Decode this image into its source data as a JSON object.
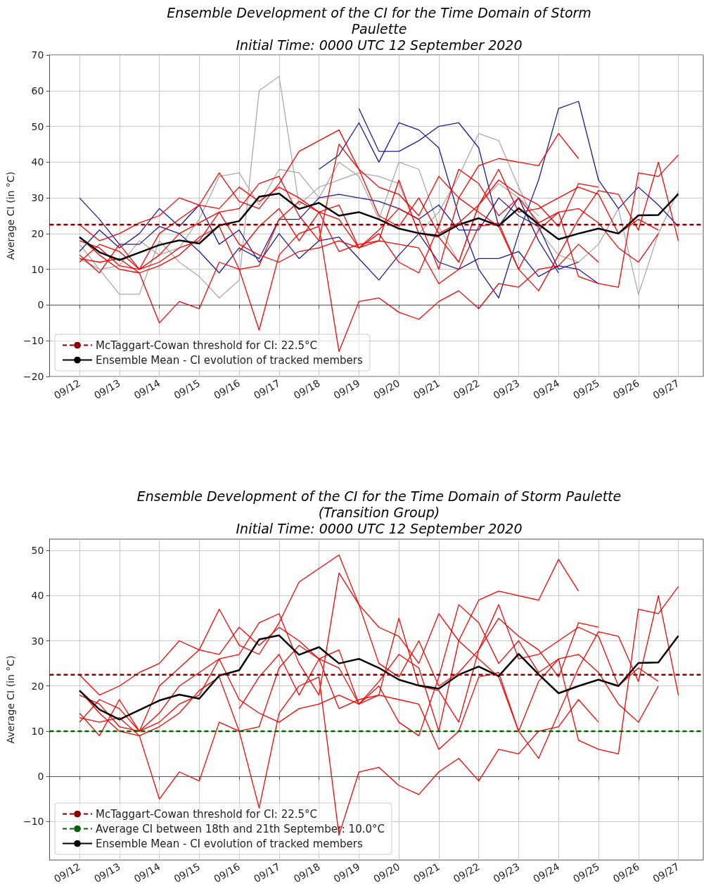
{
  "chart_data": [
    {
      "type": "line",
      "title": "Ensemble Development of the CI for the Time Domain of Storm\nPaulette\nInitial Time: 0000 UTC 12 September 2020",
      "ylabel": "Average CI (in °C)",
      "x": [
        "2020-09-12T00:00",
        "2020-09-12T12:00",
        "2020-09-13T00:00",
        "2020-09-13T12:00",
        "2020-09-14T00:00",
        "2020-09-14T12:00",
        "2020-09-15T00:00",
        "2020-09-15T12:00",
        "2020-09-16T00:00",
        "2020-09-16T12:00",
        "2020-09-17T00:00",
        "2020-09-17T12:00",
        "2020-09-18T00:00",
        "2020-09-18T12:00",
        "2020-09-19T00:00",
        "2020-09-19T12:00",
        "2020-09-20T00:00",
        "2020-09-20T12:00",
        "2020-09-21T00:00",
        "2020-09-21T12:00",
        "2020-09-22T00:00",
        "2020-09-22T12:00",
        "2020-09-23T00:00",
        "2020-09-23T12:00",
        "2020-09-24T00:00",
        "2020-09-24T12:00",
        "2020-09-25T00:00",
        "2020-09-25T12:00",
        "2020-09-26T00:00",
        "2020-09-26T12:00",
        "2020-09-27T00:00"
      ],
      "xlim": [
        "2020-09-11T06:00",
        "2020-09-27T15:00"
      ],
      "xticks": [
        {
          "value": "2020-09-12",
          "label": "09/12"
        },
        {
          "value": "2020-09-13",
          "label": "09/13"
        },
        {
          "value": "2020-09-14",
          "label": "09/14"
        },
        {
          "value": "2020-09-15",
          "label": "09/15"
        },
        {
          "value": "2020-09-16",
          "label": "09/16"
        },
        {
          "value": "2020-09-17",
          "label": "09/17"
        },
        {
          "value": "2020-09-18",
          "label": "09/18"
        },
        {
          "value": "2020-09-19",
          "label": "09/19"
        },
        {
          "value": "2020-09-20",
          "label": "09/20"
        },
        {
          "value": "2020-09-21",
          "label": "09/21"
        },
        {
          "value": "2020-09-22",
          "label": "09/22"
        },
        {
          "value": "2020-09-23",
          "label": "09/23"
        },
        {
          "value": "2020-09-24",
          "label": "09/24"
        },
        {
          "value": "2020-09-25",
          "label": "09/25"
        },
        {
          "value": "2020-09-26",
          "label": "09/26"
        },
        {
          "value": "2020-09-27",
          "label": "09/27"
        }
      ],
      "ylim": [
        -20,
        70
      ],
      "yticks": [
        -20,
        -10,
        0,
        10,
        20,
        30,
        40,
        50,
        60,
        70
      ],
      "grid": true,
      "legend": "bottom left",
      "ref_lines": [
        {
          "axis": "y",
          "value": 22.5,
          "label": "McTaggart-Cowan threshold for CI: 22.5°C",
          "color": "#8b0000",
          "line_style": "dashed"
        }
      ],
      "series": [
        {
          "color": "#aaaaaa",
          "values": [
            17,
            10,
            3,
            3,
            18,
            12,
            8,
            2,
            7,
            60,
            64,
            28,
            33,
            35,
            37,
            36,
            34,
            20,
            26,
            36,
            48,
            46,
            33,
            21,
            14,
            12,
            17,
            27,
            3,
            20,
            32
          ]
        },
        {
          "color": "#aaaaaa",
          "values": [
            13,
            10,
            11,
            18,
            14,
            16,
            24,
            36,
            37,
            28,
            38,
            37,
            30,
            40,
            36,
            24,
            40,
            38,
            22,
            12,
            28,
            34,
            30,
            25,
            null,
            null,
            null,
            null,
            null,
            null,
            null
          ]
        },
        {
          "color": "#1c1c9c",
          "values": [
            30,
            24,
            17,
            17,
            22,
            20,
            15,
            9,
            16,
            13,
            24,
            24,
            30,
            31,
            30,
            29,
            27,
            24,
            28,
            21,
            21,
            30,
            25,
            22,
            10,
            12,
            null,
            null,
            null,
            null,
            null
          ]
        },
        {
          "color": "#1c1c9c",
          "values": [
            15,
            21,
            16,
            20,
            27,
            22,
            28,
            17,
            21,
            12,
            20,
            13,
            18,
            19,
            13,
            7,
            14,
            20,
            12,
            10,
            13,
            13,
            15,
            8,
            11,
            10,
            6,
            null,
            null,
            null,
            null
          ]
        },
        {
          "color": "#1c1c9c",
          "values": [
            null,
            null,
            null,
            null,
            null,
            null,
            null,
            null,
            null,
            null,
            null,
            null,
            38,
            42,
            51,
            40,
            51,
            49,
            44,
            25,
            10,
            2,
            20,
            35,
            55,
            57,
            35,
            27,
            33,
            28,
            22
          ]
        },
        {
          "color": "#1c1c9c",
          "values": [
            null,
            null,
            null,
            null,
            null,
            null,
            null,
            null,
            null,
            null,
            null,
            null,
            null,
            null,
            55,
            43,
            43,
            46,
            50,
            51,
            44,
            22,
            30,
            18,
            9,
            null,
            null,
            null,
            null,
            null,
            null
          ]
        },
        {
          "color": "#ff0000",
          "values": [
            22.5,
            18,
            20,
            23,
            25,
            30,
            28,
            37,
            29,
            27,
            34,
            43,
            46,
            49,
            38,
            33,
            31,
            25,
            36,
            30,
            39,
            41,
            40,
            39,
            48,
            41,
            null,
            null,
            null,
            null,
            null
          ]
        },
        {
          "color": "#ff0000",
          "values": [
            12,
            17,
            15,
            10,
            12,
            16,
            18,
            26,
            27,
            34,
            36,
            25,
            18,
            45,
            38,
            25,
            22,
            30,
            20,
            23,
            28,
            35,
            31,
            28,
            22,
            34,
            33,
            null,
            null,
            null,
            null
          ]
        },
        {
          "color": "#ff0000",
          "values": [
            19,
            14,
            10,
            9,
            -5,
            1,
            -1,
            12,
            10,
            -7,
            14,
            20,
            22,
            -13,
            1,
            2,
            -2,
            -4,
            1,
            4,
            -1,
            6,
            5,
            10,
            11,
            17,
            12,
            null,
            null,
            null,
            null
          ]
        },
        {
          "color": "#ff0000",
          "values": [
            14,
            9,
            17,
            10,
            14,
            20,
            23,
            26,
            17,
            14,
            12,
            15,
            16,
            18,
            16,
            20,
            12,
            9,
            22,
            38,
            34,
            25,
            30,
            23,
            26,
            8,
            6,
            5,
            37,
            36,
            42
          ]
        },
        {
          "color": "#ff0000",
          "values": [
            13,
            12,
            13,
            9,
            11,
            14,
            19,
            22,
            10,
            11,
            24,
            29,
            26,
            15,
            17,
            18,
            17,
            16,
            6,
            10,
            22,
            23,
            10,
            4,
            14,
            24,
            32,
            31,
            21,
            40,
            18
          ]
        },
        {
          "color": "#ff0000",
          "values": [
            18,
            16,
            11,
            10,
            20,
            24,
            28,
            27,
            33,
            29,
            33,
            30,
            26,
            24,
            16,
            18,
            35,
            20,
            19,
            12,
            28,
            38,
            26,
            27,
            30,
            33,
            31,
            20,
            24,
            21,
            null
          ]
        },
        {
          "color": "#ff0000",
          "values": [
            null,
            null,
            null,
            null,
            null,
            null,
            null,
            null,
            15,
            22,
            27,
            18,
            26,
            28,
            16,
            21,
            27,
            24,
            10,
            30,
            26,
            22,
            10,
            21,
            26,
            27,
            23,
            16,
            12,
            20,
            null
          ]
        },
        {
          "name": "Ensemble Mean - CI evolution of tracked members",
          "color": "#000000",
          "values": [
            19,
            14.8,
            12.6,
            14.7,
            16.8,
            18.1,
            17.2,
            22.3,
            23.5,
            30.3,
            31.2,
            26.9,
            28.6,
            25,
            26,
            24,
            21.4,
            20.1,
            19.4,
            22.5,
            24.3,
            22.2,
            27.1,
            22.6,
            18.4,
            20,
            21.4,
            20,
            25.1,
            25.2,
            31.1
          ]
        }
      ]
    },
    {
      "type": "line",
      "title": "Ensemble Development of the CI for the Time Domain of Storm Paulette\n(Transition Group)\nInitial Time: 0000 UTC 12 September 2020",
      "ylabel": "Average CI (in °C)",
      "x": [
        "2020-09-12T00:00",
        "2020-09-12T12:00",
        "2020-09-13T00:00",
        "2020-09-13T12:00",
        "2020-09-14T00:00",
        "2020-09-14T12:00",
        "2020-09-15T00:00",
        "2020-09-15T12:00",
        "2020-09-16T00:00",
        "2020-09-16T12:00",
        "2020-09-17T00:00",
        "2020-09-17T12:00",
        "2020-09-18T00:00",
        "2020-09-18T12:00",
        "2020-09-19T00:00",
        "2020-09-19T12:00",
        "2020-09-20T00:00",
        "2020-09-20T12:00",
        "2020-09-21T00:00",
        "2020-09-21T12:00",
        "2020-09-22T00:00",
        "2020-09-22T12:00",
        "2020-09-23T00:00",
        "2020-09-23T12:00",
        "2020-09-24T00:00",
        "2020-09-24T12:00",
        "2020-09-25T00:00",
        "2020-09-25T12:00",
        "2020-09-26T00:00",
        "2020-09-26T12:00",
        "2020-09-27T00:00"
      ],
      "xlim": [
        "2020-09-11T06:00",
        "2020-09-27T15:00"
      ],
      "xticks": [
        {
          "value": "2020-09-12",
          "label": "09/12"
        },
        {
          "value": "2020-09-13",
          "label": "09/13"
        },
        {
          "value": "2020-09-14",
          "label": "09/14"
        },
        {
          "value": "2020-09-15",
          "label": "09/15"
        },
        {
          "value": "2020-09-16",
          "label": "09/16"
        },
        {
          "value": "2020-09-17",
          "label": "09/17"
        },
        {
          "value": "2020-09-18",
          "label": "09/18"
        },
        {
          "value": "2020-09-19",
          "label": "09/19"
        },
        {
          "value": "2020-09-20",
          "label": "09/20"
        },
        {
          "value": "2020-09-21",
          "label": "09/21"
        },
        {
          "value": "2020-09-22",
          "label": "09/22"
        },
        {
          "value": "2020-09-23",
          "label": "09/23"
        },
        {
          "value": "2020-09-24",
          "label": "09/24"
        },
        {
          "value": "2020-09-25",
          "label": "09/25"
        },
        {
          "value": "2020-09-26",
          "label": "09/26"
        },
        {
          "value": "2020-09-27",
          "label": "09/27"
        }
      ],
      "ylim": [
        -18.5,
        52.5
      ],
      "yticks": [
        -10,
        0,
        10,
        20,
        30,
        40,
        50
      ],
      "grid": true,
      "legend": "bottom left",
      "ref_lines": [
        {
          "axis": "y",
          "value": 22.5,
          "label": "McTaggart-Cowan threshold for CI: 22.5°C",
          "color": "#8b0000",
          "line_style": "dashed"
        },
        {
          "axis": "y",
          "value": 10.0,
          "label": "Average CI between 18th and 21th September: 10.0°C",
          "color": "#006400",
          "line_style": "dashed"
        }
      ],
      "series": [
        {
          "color": "#ff0000",
          "values": [
            22.5,
            18,
            20,
            23,
            25,
            30,
            28,
            37,
            29,
            27,
            34,
            43,
            46,
            49,
            38,
            33,
            31,
            25,
            36,
            30,
            39,
            41,
            40,
            39,
            48,
            41,
            null,
            null,
            null,
            null,
            null
          ]
        },
        {
          "color": "#ff0000",
          "values": [
            12,
            17,
            15,
            10,
            12,
            16,
            18,
            26,
            27,
            34,
            36,
            25,
            18,
            45,
            38,
            25,
            22,
            30,
            20,
            23,
            28,
            35,
            31,
            28,
            22,
            34,
            33,
            null,
            null,
            null,
            null
          ]
        },
        {
          "color": "#ff0000",
          "values": [
            19,
            14,
            10,
            9,
            -5,
            1,
            -1,
            12,
            10,
            -7,
            14,
            20,
            22,
            -13,
            1,
            2,
            -2,
            -4,
            1,
            4,
            -1,
            6,
            5,
            10,
            11,
            17,
            12,
            null,
            null,
            null,
            null
          ]
        },
        {
          "color": "#ff0000",
          "values": [
            14,
            9,
            17,
            10,
            14,
            20,
            23,
            26,
            17,
            14,
            12,
            15,
            16,
            18,
            16,
            20,
            12,
            9,
            22,
            38,
            34,
            25,
            30,
            23,
            26,
            8,
            6,
            5,
            37,
            36,
            42
          ]
        },
        {
          "color": "#ff0000",
          "values": [
            13,
            12,
            13,
            9,
            11,
            14,
            19,
            22,
            10,
            11,
            24,
            29,
            26,
            15,
            17,
            18,
            17,
            16,
            6,
            10,
            22,
            23,
            10,
            4,
            14,
            24,
            32,
            31,
            21,
            40,
            18
          ]
        },
        {
          "color": "#ff0000",
          "values": [
            18,
            16,
            11,
            10,
            20,
            24,
            28,
            27,
            33,
            29,
            33,
            30,
            26,
            24,
            16,
            18,
            35,
            20,
            19,
            12,
            28,
            38,
            26,
            27,
            30,
            33,
            31,
            20,
            24,
            21,
            null
          ]
        },
        {
          "color": "#ff0000",
          "values": [
            null,
            null,
            null,
            null,
            null,
            null,
            null,
            null,
            15,
            22,
            27,
            18,
            26,
            28,
            16,
            21,
            27,
            24,
            10,
            30,
            26,
            22,
            10,
            21,
            26,
            27,
            23,
            16,
            12,
            20,
            null
          ]
        },
        {
          "name": "Ensemble Mean - CI evolution of tracked members",
          "color": "#000000",
          "values": [
            19,
            14.8,
            12.6,
            14.7,
            16.8,
            18.1,
            17.2,
            22.3,
            23.5,
            30.3,
            31.2,
            26.9,
            28.6,
            25,
            26,
            24,
            21.4,
            20.1,
            19.4,
            22.5,
            24.3,
            22.2,
            27.1,
            22.6,
            18.4,
            20,
            21.4,
            20,
            25.1,
            25.2,
            31.1
          ]
        }
      ]
    }
  ]
}
